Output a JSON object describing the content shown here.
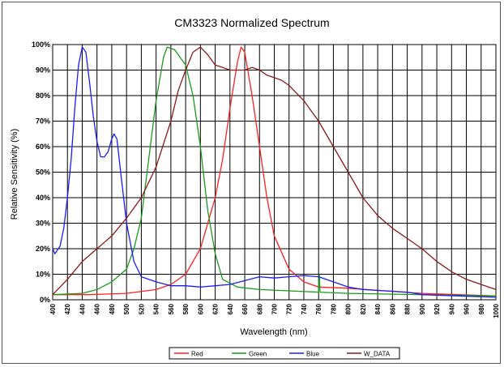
{
  "chart_data": {
    "type": "line",
    "title": "CM3323 Normalized Spectrum",
    "xlabel": "Wavelength (nm)",
    "ylabel": "Relative Sensitivity (%)",
    "xlim": [
      400,
      1000
    ],
    "ylim": [
      0,
      100
    ],
    "x_ticks": [
      400,
      420,
      440,
      460,
      480,
      500,
      520,
      540,
      560,
      580,
      600,
      620,
      640,
      660,
      680,
      700,
      720,
      740,
      760,
      780,
      800,
      820,
      840,
      860,
      880,
      900,
      920,
      940,
      960,
      980,
      1000
    ],
    "y_ticks": [
      0,
      10,
      20,
      30,
      40,
      50,
      60,
      70,
      80,
      90,
      100
    ],
    "grid": true,
    "legend_position": "bottom",
    "series": [
      {
        "name": "Red",
        "color": "#ff2020",
        "points": [
          [
            400,
            2
          ],
          [
            450,
            2
          ],
          [
            500,
            2.5
          ],
          [
            540,
            4
          ],
          [
            560,
            6
          ],
          [
            580,
            10
          ],
          [
            600,
            20
          ],
          [
            620,
            40
          ],
          [
            630,
            55
          ],
          [
            640,
            75
          ],
          [
            650,
            93
          ],
          [
            655,
            99
          ],
          [
            660,
            97
          ],
          [
            670,
            80
          ],
          [
            680,
            60
          ],
          [
            690,
            40
          ],
          [
            700,
            25
          ],
          [
            720,
            12
          ],
          [
            740,
            7
          ],
          [
            760,
            5
          ],
          [
            800,
            4.5
          ],
          [
            850,
            3.5
          ],
          [
            900,
            2.5
          ],
          [
            950,
            2
          ],
          [
            1000,
            1.5
          ]
        ]
      },
      {
        "name": "Green",
        "color": "#1a9a1a",
        "points": [
          [
            400,
            2
          ],
          [
            440,
            2.5
          ],
          [
            460,
            4
          ],
          [
            480,
            7
          ],
          [
            500,
            12
          ],
          [
            510,
            20
          ],
          [
            520,
            32
          ],
          [
            530,
            55
          ],
          [
            540,
            78
          ],
          [
            550,
            95
          ],
          [
            555,
            99
          ],
          [
            565,
            98
          ],
          [
            580,
            92
          ],
          [
            590,
            80
          ],
          [
            600,
            60
          ],
          [
            610,
            35
          ],
          [
            620,
            18
          ],
          [
            630,
            8
          ],
          [
            650,
            5
          ],
          [
            680,
            4
          ],
          [
            720,
            3.5
          ],
          [
            760,
            3
          ],
          [
            761,
            10
          ],
          [
            762,
            3
          ],
          [
            800,
            2.5
          ],
          [
            900,
            2
          ],
          [
            1000,
            1.5
          ]
        ]
      },
      {
        "name": "Blue",
        "color": "#1a1aff",
        "points": [
          [
            400,
            20
          ],
          [
            403,
            18
          ],
          [
            410,
            21
          ],
          [
            415,
            28
          ],
          [
            420,
            40
          ],
          [
            425,
            55
          ],
          [
            430,
            75
          ],
          [
            435,
            92
          ],
          [
            440,
            99
          ],
          [
            445,
            97
          ],
          [
            450,
            85
          ],
          [
            455,
            72
          ],
          [
            460,
            62
          ],
          [
            465,
            56
          ],
          [
            470,
            56
          ],
          [
            475,
            58
          ],
          [
            480,
            63
          ],
          [
            483,
            65
          ],
          [
            487,
            63
          ],
          [
            492,
            50
          ],
          [
            500,
            30
          ],
          [
            510,
            15
          ],
          [
            520,
            9
          ],
          [
            540,
            7
          ],
          [
            560,
            5.5
          ],
          [
            580,
            5.5
          ],
          [
            600,
            5
          ],
          [
            640,
            6
          ],
          [
            680,
            9
          ],
          [
            700,
            8.5
          ],
          [
            720,
            9
          ],
          [
            740,
            9.5
          ],
          [
            760,
            9
          ],
          [
            780,
            7
          ],
          [
            800,
            5
          ],
          [
            820,
            4
          ],
          [
            850,
            3.5
          ],
          [
            880,
            3
          ],
          [
            900,
            2
          ],
          [
            950,
            1.5
          ],
          [
            1000,
            1
          ]
        ]
      },
      {
        "name": "W_DATA",
        "color": "#8b1a1a",
        "points": [
          [
            400,
            2
          ],
          [
            420,
            8
          ],
          [
            440,
            15
          ],
          [
            460,
            20
          ],
          [
            480,
            25
          ],
          [
            500,
            32
          ],
          [
            520,
            40
          ],
          [
            540,
            52
          ],
          [
            560,
            70
          ],
          [
            570,
            82
          ],
          [
            580,
            90
          ],
          [
            590,
            97
          ],
          [
            600,
            99
          ],
          [
            610,
            96
          ],
          [
            620,
            92
          ],
          [
            630,
            91
          ],
          [
            640,
            90
          ],
          [
            650,
            90
          ],
          [
            660,
            90
          ],
          [
            670,
            91
          ],
          [
            680,
            90
          ],
          [
            690,
            88
          ],
          [
            700,
            87
          ],
          [
            710,
            86
          ],
          [
            720,
            84
          ],
          [
            740,
            78
          ],
          [
            760,
            70
          ],
          [
            780,
            60
          ],
          [
            800,
            50
          ],
          [
            820,
            40
          ],
          [
            840,
            33
          ],
          [
            860,
            28
          ],
          [
            880,
            24
          ],
          [
            900,
            20
          ],
          [
            920,
            15
          ],
          [
            940,
            11
          ],
          [
            960,
            8
          ],
          [
            980,
            6
          ],
          [
            1000,
            4
          ]
        ]
      }
    ]
  }
}
